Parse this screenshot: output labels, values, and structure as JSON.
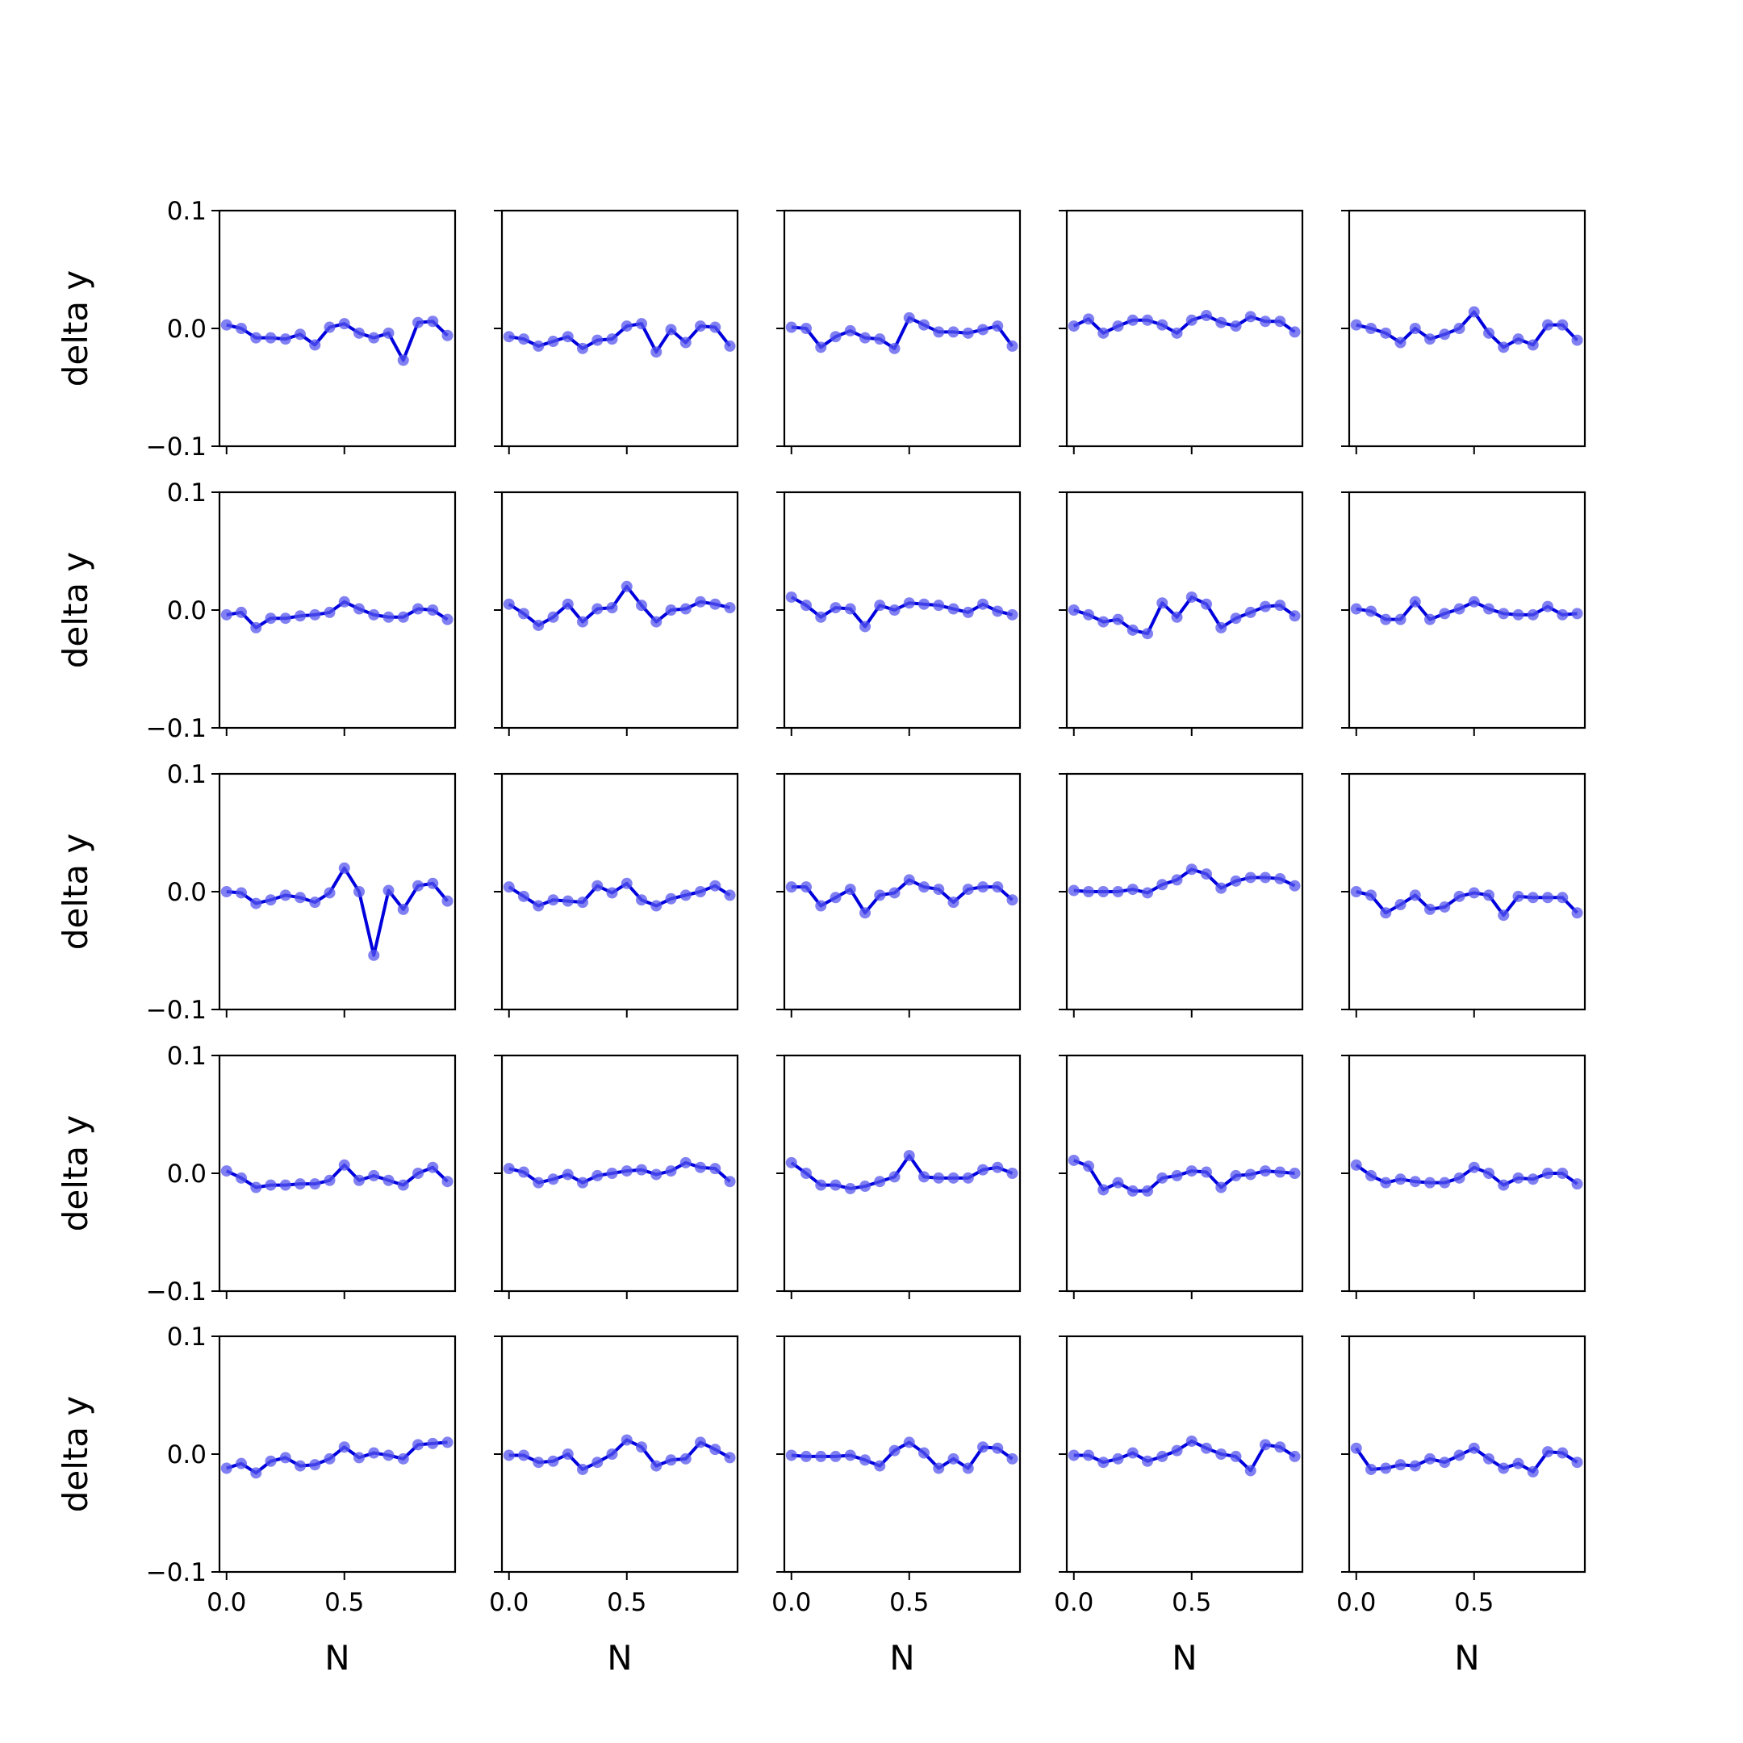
{
  "chart_data": {
    "type": "line",
    "layout": "grid",
    "rows": 5,
    "cols": 5,
    "xlabel": "N",
    "ylabel": "delta y",
    "xlim": [
      -0.03,
      0.97
    ],
    "ylim": [
      -0.1,
      0.1
    ],
    "xticks": [
      0.0,
      0.5
    ],
    "xtick_labels": [
      "0.0",
      "0.5"
    ],
    "yticks": [
      -0.1,
      0.0,
      0.1
    ],
    "ytick_labels": [
      "−0.1",
      "0.0",
      "0.1"
    ],
    "grid": false,
    "line_color": "#0000dd",
    "marker_color": "#5555ee",
    "x": [
      0.0,
      0.0625,
      0.125,
      0.1875,
      0.25,
      0.3125,
      0.375,
      0.4375,
      0.5,
      0.5625,
      0.625,
      0.6875,
      0.75,
      0.8125,
      0.875,
      0.9375
    ],
    "panels": [
      {
        "values": [
          0.003,
          0.0,
          -0.008,
          -0.008,
          -0.009,
          -0.005,
          -0.014,
          0.001,
          0.004,
          -0.004,
          -0.008,
          -0.004,
          -0.027,
          0.005,
          0.006,
          -0.006
        ]
      },
      {
        "values": [
          -0.007,
          -0.009,
          -0.015,
          -0.011,
          -0.007,
          -0.017,
          -0.01,
          -0.009,
          0.002,
          0.004,
          -0.02,
          -0.001,
          -0.012,
          0.002,
          0.001,
          -0.015
        ]
      },
      {
        "values": [
          0.001,
          0.0,
          -0.016,
          -0.007,
          -0.002,
          -0.008,
          -0.009,
          -0.017,
          0.009,
          0.003,
          -0.003,
          -0.003,
          -0.004,
          -0.001,
          0.002,
          -0.015
        ]
      },
      {
        "values": [
          0.002,
          0.008,
          -0.004,
          0.002,
          0.007,
          0.007,
          0.003,
          -0.004,
          0.007,
          0.011,
          0.005,
          0.002,
          0.01,
          0.006,
          0.006,
          -0.003
        ]
      },
      {
        "values": [
          0.003,
          0.0,
          -0.004,
          -0.012,
          0.0,
          -0.009,
          -0.005,
          0.0,
          0.014,
          -0.004,
          -0.016,
          -0.009,
          -0.014,
          0.003,
          0.003,
          -0.01
        ]
      },
      {
        "values": [
          -0.004,
          -0.002,
          -0.015,
          -0.007,
          -0.007,
          -0.005,
          -0.004,
          -0.002,
          0.007,
          0.001,
          -0.004,
          -0.006,
          -0.006,
          0.001,
          0.0,
          -0.008
        ]
      },
      {
        "values": [
          0.005,
          -0.003,
          -0.013,
          -0.006,
          0.005,
          -0.01,
          0.001,
          0.002,
          0.02,
          0.004,
          -0.01,
          0.0,
          0.001,
          0.007,
          0.005,
          0.002
        ]
      },
      {
        "values": [
          0.011,
          0.004,
          -0.006,
          0.002,
          0.001,
          -0.014,
          0.004,
          0.0,
          0.006,
          0.005,
          0.004,
          0.001,
          -0.002,
          0.005,
          -0.001,
          -0.004
        ]
      },
      {
        "values": [
          0.0,
          -0.004,
          -0.01,
          -0.008,
          -0.017,
          -0.02,
          0.006,
          -0.006,
          0.011,
          0.005,
          -0.015,
          -0.007,
          -0.002,
          0.003,
          0.004,
          -0.005
        ]
      },
      {
        "values": [
          0.001,
          -0.001,
          -0.008,
          -0.008,
          0.007,
          -0.008,
          -0.003,
          0.001,
          0.007,
          0.001,
          -0.003,
          -0.004,
          -0.004,
          0.003,
          -0.004,
          -0.003
        ]
      },
      {
        "values": [
          0.0,
          -0.001,
          -0.01,
          -0.007,
          -0.003,
          -0.005,
          -0.009,
          -0.001,
          0.02,
          0.0,
          -0.054,
          0.001,
          -0.015,
          0.005,
          0.007,
          -0.008
        ]
      },
      {
        "values": [
          0.004,
          -0.004,
          -0.012,
          -0.007,
          -0.008,
          -0.009,
          0.005,
          -0.001,
          0.007,
          -0.007,
          -0.012,
          -0.006,
          -0.003,
          0.0,
          0.005,
          -0.003
        ]
      },
      {
        "values": [
          0.004,
          0.004,
          -0.012,
          -0.005,
          0.002,
          -0.018,
          -0.003,
          -0.001,
          0.01,
          0.004,
          0.002,
          -0.009,
          0.002,
          0.004,
          0.004,
          -0.007
        ]
      },
      {
        "values": [
          0.001,
          0.0,
          0.0,
          0.0,
          0.002,
          -0.001,
          0.006,
          0.01,
          0.019,
          0.015,
          0.003,
          0.009,
          0.012,
          0.012,
          0.011,
          0.005
        ]
      },
      {
        "values": [
          0.0,
          -0.003,
          -0.018,
          -0.011,
          -0.003,
          -0.015,
          -0.013,
          -0.004,
          -0.001,
          -0.003,
          -0.02,
          -0.004,
          -0.005,
          -0.005,
          -0.005,
          -0.018
        ]
      },
      {
        "values": [
          0.002,
          -0.004,
          -0.012,
          -0.01,
          -0.01,
          -0.009,
          -0.009,
          -0.006,
          0.007,
          -0.006,
          -0.002,
          -0.006,
          -0.01,
          0.0,
          0.005,
          -0.007
        ]
      },
      {
        "values": [
          0.004,
          0.001,
          -0.008,
          -0.005,
          -0.001,
          -0.008,
          -0.002,
          0.0,
          0.002,
          0.003,
          -0.001,
          0.002,
          0.009,
          0.005,
          0.004,
          -0.007
        ]
      },
      {
        "values": [
          0.009,
          0.0,
          -0.01,
          -0.01,
          -0.013,
          -0.011,
          -0.007,
          -0.003,
          0.015,
          -0.003,
          -0.004,
          -0.004,
          -0.004,
          0.003,
          0.005,
          0.0
        ]
      },
      {
        "values": [
          0.011,
          0.006,
          -0.014,
          -0.008,
          -0.015,
          -0.015,
          -0.004,
          -0.002,
          0.002,
          0.001,
          -0.012,
          -0.002,
          -0.001,
          0.002,
          0.001,
          0.0
        ]
      },
      {
        "values": [
          0.007,
          -0.002,
          -0.008,
          -0.005,
          -0.007,
          -0.008,
          -0.008,
          -0.004,
          0.005,
          0.0,
          -0.01,
          -0.004,
          -0.005,
          0.0,
          0.0,
          -0.009
        ]
      },
      {
        "values": [
          -0.012,
          -0.008,
          -0.016,
          -0.006,
          -0.003,
          -0.01,
          -0.009,
          -0.004,
          0.006,
          -0.003,
          0.001,
          -0.001,
          -0.004,
          0.008,
          0.009,
          0.01
        ]
      },
      {
        "values": [
          -0.001,
          -0.001,
          -0.007,
          -0.006,
          0.0,
          -0.013,
          -0.007,
          0.0,
          0.012,
          0.006,
          -0.01,
          -0.005,
          -0.004,
          0.01,
          0.004,
          -0.003
        ]
      },
      {
        "values": [
          -0.001,
          -0.002,
          -0.002,
          -0.002,
          -0.001,
          -0.005,
          -0.01,
          0.003,
          0.01,
          0.001,
          -0.012,
          -0.004,
          -0.012,
          0.006,
          0.005,
          -0.004
        ]
      },
      {
        "values": [
          -0.001,
          -0.001,
          -0.007,
          -0.004,
          0.001,
          -0.006,
          -0.002,
          0.003,
          0.011,
          0.005,
          0.0,
          -0.002,
          -0.014,
          0.008,
          0.006,
          -0.002
        ]
      },
      {
        "values": [
          0.005,
          -0.013,
          -0.012,
          -0.009,
          -0.01,
          -0.004,
          -0.007,
          -0.001,
          0.005,
          -0.004,
          -0.012,
          -0.008,
          -0.015,
          0.002,
          0.001,
          -0.007
        ]
      }
    ]
  }
}
